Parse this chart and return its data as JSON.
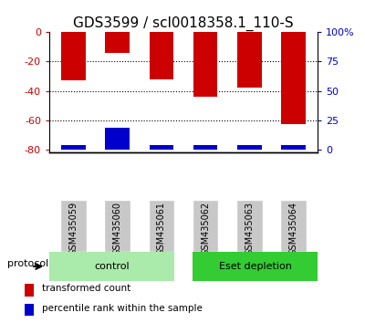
{
  "title": "GDS3599 / scl0018358.1_110-S",
  "samples": [
    "GSM435059",
    "GSM435060",
    "GSM435061",
    "GSM435062",
    "GSM435063",
    "GSM435064"
  ],
  "red_tops": [
    0,
    0,
    0,
    0,
    0,
    0
  ],
  "red_bottoms": [
    -33,
    -14,
    -32,
    -44,
    -38,
    -63
  ],
  "blue_tops": [
    -77,
    -65,
    -77,
    -77,
    -77,
    -77
  ],
  "blue_bottoms": [
    -80,
    -80,
    -80,
    -80,
    -80,
    -80
  ],
  "ylim": [
    -82,
    0
  ],
  "yticks_left": [
    0,
    -20,
    -40,
    -60,
    -80
  ],
  "yticks_right_pct": [
    100,
    75,
    50,
    25,
    0
  ],
  "yticks_right_pos": [
    0,
    -20,
    -40,
    -60,
    -80
  ],
  "group_control": [
    0,
    1,
    2
  ],
  "group_eset": [
    3,
    4,
    5
  ],
  "control_label": "control",
  "eset_label": "Eset depletion",
  "control_color": "#AAEAAA",
  "eset_color": "#33CC33",
  "gray_color": "#C8C8C8",
  "protocol_label": "protocol",
  "legend_items": [
    {
      "color": "#CC0000",
      "label": "transformed count"
    },
    {
      "color": "#0000CC",
      "label": "percentile rank within the sample"
    }
  ],
  "bar_color_red": "#CC0000",
  "bar_color_blue": "#0000CC",
  "bar_width": 0.55,
  "title_fontsize": 11,
  "tick_fontsize": 8,
  "label_fontsize": 8,
  "sample_fontsize": 7,
  "axis_color_left": "#CC0000",
  "axis_color_right": "#0000CC"
}
